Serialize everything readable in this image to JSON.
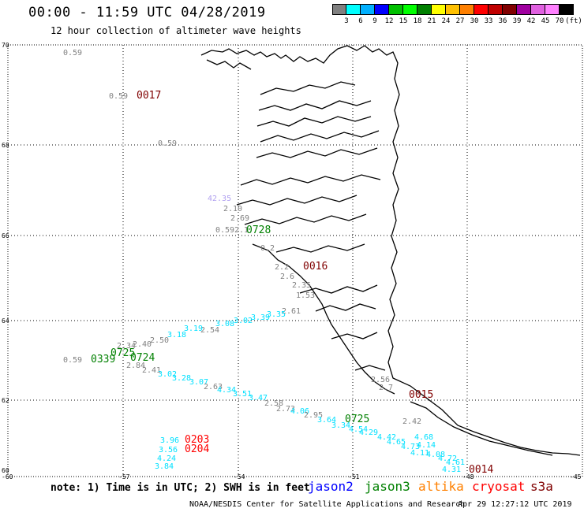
{
  "title": "00:00 - 11:59 UTC 04/28/2019",
  "subtitle": "12 hour collection of altimeter wave heights",
  "legend": {
    "colors": [
      "#808080",
      "#00ffff",
      "#00b0ff",
      "#0000ff",
      "#00c000",
      "#00ff00",
      "#008000",
      "#ffff00",
      "#ffc000",
      "#ff8000",
      "#ff0000",
      "#c00000",
      "#800000",
      "#a000a0",
      "#e060e0",
      "#ff80ff",
      "#000000"
    ],
    "labels": [
      "3",
      "6",
      "9",
      "12",
      "15",
      "18",
      "21",
      "24",
      "27",
      "30",
      "33",
      "36",
      "39",
      "42",
      "45",
      "70",
      "(ft)"
    ]
  },
  "axes": {
    "lat_labels": [
      "70",
      "68",
      "66",
      "64",
      "62",
      "60"
    ],
    "lon_labels": [
      "-60",
      "-57",
      "-54",
      "-51",
      "-48",
      "-45"
    ]
  },
  "points": [
    {
      "t": "0.59",
      "c": "#808080"
    },
    {
      "t": "0.59",
      "c": "#808080"
    },
    {
      "t": "0017",
      "c": "#800000"
    },
    {
      "t": "0.59",
      "c": "#808080"
    },
    {
      "t": "42.35",
      "c": "#b0a0f0"
    },
    {
      "t": "2.10",
      "c": "#808080"
    },
    {
      "t": "2.69",
      "c": "#808080"
    },
    {
      "t": "0.59",
      "c": "#808080"
    },
    {
      "t": "2.1",
      "c": "#808080"
    },
    {
      "t": "0728",
      "c": "#008000"
    },
    {
      "t": "0.2",
      "c": "#808080"
    },
    {
      "t": "0016",
      "c": "#800000"
    },
    {
      "t": "2.2",
      "c": "#808080"
    },
    {
      "t": "2.6",
      "c": "#808080"
    },
    {
      "t": "2.35",
      "c": "#808080"
    },
    {
      "t": "1.53",
      "c": "#808080"
    },
    {
      "t": "2.61",
      "c": "#808080"
    },
    {
      "t": "3.35",
      "c": "#00e0ff"
    },
    {
      "t": "3.39",
      "c": "#00e0ff"
    },
    {
      "t": "3.02",
      "c": "#00e0ff"
    },
    {
      "t": "3.08",
      "c": "#00e0ff"
    },
    {
      "t": "2.54",
      "c": "#808080"
    },
    {
      "t": "3.19",
      "c": "#00e0ff"
    },
    {
      "t": "3.18",
      "c": "#00e0ff"
    },
    {
      "t": "2.50",
      "c": "#808080"
    },
    {
      "t": "2.40",
      "c": "#808080"
    },
    {
      "t": "2.34",
      "c": "#808080"
    },
    {
      "t": "0.59",
      "c": "#808080"
    },
    {
      "t": "0339",
      "c": "#008000"
    },
    {
      "t": "0725",
      "c": "#008000"
    },
    {
      "t": "0724",
      "c": "#008000"
    },
    {
      "t": "2.84",
      "c": "#808080"
    },
    {
      "t": "2.41",
      "c": "#808080"
    },
    {
      "t": "3.02",
      "c": "#00e0ff"
    },
    {
      "t": "3.28",
      "c": "#00e0ff"
    },
    {
      "t": "3.07",
      "c": "#00e0ff"
    },
    {
      "t": "2.63",
      "c": "#808080"
    },
    {
      "t": "4.34",
      "c": "#00e0ff"
    },
    {
      "t": "3.51",
      "c": "#00e0ff"
    },
    {
      "t": "3.47",
      "c": "#00e0ff"
    },
    {
      "t": "2.58",
      "c": "#808080"
    },
    {
      "t": "2.73",
      "c": "#808080"
    },
    {
      "t": "4.06",
      "c": "#00e0ff"
    },
    {
      "t": "2.95",
      "c": "#808080"
    },
    {
      "t": "3.64",
      "c": "#00e0ff"
    },
    {
      "t": "3.34",
      "c": "#00e0ff"
    },
    {
      "t": "4.54",
      "c": "#00e0ff"
    },
    {
      "t": "0725",
      "c": "#008000"
    },
    {
      "t": "4.29",
      "c": "#00e0ff"
    },
    {
      "t": "4.42",
      "c": "#00e0ff"
    },
    {
      "t": "4.65",
      "c": "#00e0ff"
    },
    {
      "t": "4.73",
      "c": "#00e0ff"
    },
    {
      "t": "4.14",
      "c": "#00e0ff"
    },
    {
      "t": "4.11",
      "c": "#00e0ff"
    },
    {
      "t": "4.68",
      "c": "#00e0ff"
    },
    {
      "t": "4.08",
      "c": "#00e0ff"
    },
    {
      "t": "4.72",
      "c": "#00e0ff"
    },
    {
      "t": "4.61",
      "c": "#00e0ff"
    },
    {
      "t": "4.31",
      "c": "#00e0ff"
    },
    {
      "t": "0014",
      "c": "#800000"
    },
    {
      "t": "0015",
      "c": "#800000"
    },
    {
      "t": "2.42",
      "c": "#808080"
    },
    {
      "t": "2.56",
      "c": "#808080"
    },
    {
      "t": "2.7",
      "c": "#808080"
    },
    {
      "t": "3.96",
      "c": "#00e0ff"
    },
    {
      "t": "0203",
      "c": "#ff0000"
    },
    {
      "t": "3.56",
      "c": "#00e0ff"
    },
    {
      "t": "0204",
      "c": "#ff0000"
    },
    {
      "t": "4.24",
      "c": "#00e0ff"
    },
    {
      "t": "3.84",
      "c": "#00e0ff"
    }
  ],
  "note": "note: 1) Time is in UTC; 2) SWH is in feet",
  "satellites": [
    {
      "name": "jason2",
      "color": "#0000ff"
    },
    {
      "name": "jason3",
      "color": "#008000"
    },
    {
      "name": "altika",
      "color": "#ff8000"
    },
    {
      "name": "cryosat",
      "color": "#ff0000"
    },
    {
      "name": "s3a",
      "color": "#800000"
    }
  ],
  "credit": "NOAA/NESDIS Center for Satellite Applications and Research",
  "timestamp": "Apr 29 12:27:12 UTC 2019"
}
